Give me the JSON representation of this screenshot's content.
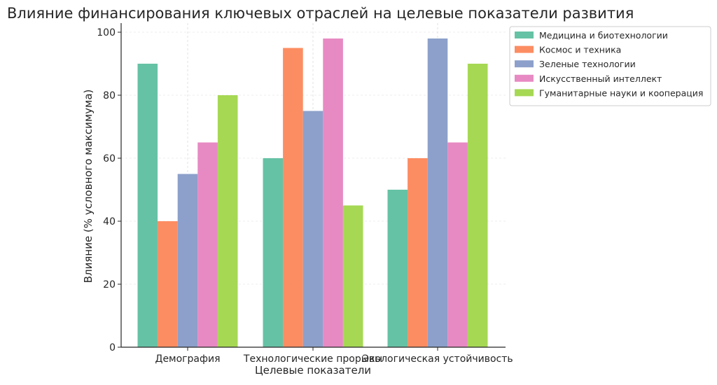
{
  "chart_data": {
    "type": "bar",
    "title": "Влияние финансирования ключевых отраслей на целевые показатели развития",
    "xlabel": "Целевые показатели",
    "ylabel": "Влияние (% условного максимума)",
    "categories": [
      "Демография",
      "Технологические прорывы",
      "Экологическая устойчивость"
    ],
    "ylim": [
      0,
      100
    ],
    "yticks": [
      0,
      20,
      40,
      60,
      80,
      100
    ],
    "grid": true,
    "legend_position": "outside-top-right",
    "series": [
      {
        "name": "Медицина и биотехнологии",
        "color": "#66c2a5",
        "values": [
          90,
          60,
          50
        ]
      },
      {
        "name": "Космос и техника",
        "color": "#fc8d62",
        "values": [
          40,
          95,
          60
        ]
      },
      {
        "name": "Зеленые технологии",
        "color": "#8da0cb",
        "values": [
          55,
          75,
          98
        ]
      },
      {
        "name": "Искусственный интеллект",
        "color": "#e78ac3",
        "values": [
          65,
          98,
          65
        ]
      },
      {
        "name": "Гуманитарные науки и кооперация",
        "color": "#a6d854",
        "values": [
          80,
          45,
          90
        ]
      }
    ]
  }
}
